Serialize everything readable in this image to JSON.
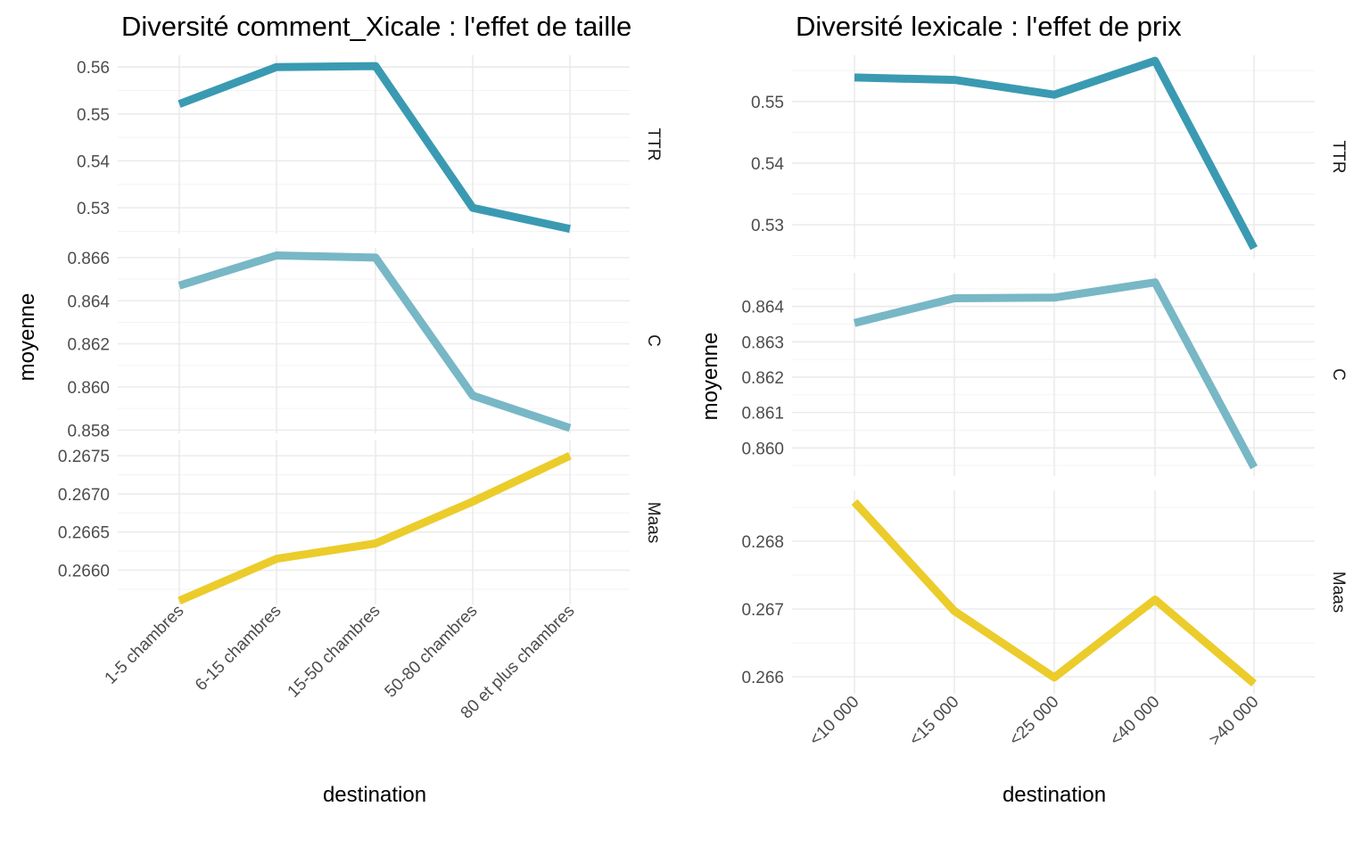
{
  "chart_data": [
    {
      "type": "line",
      "title": "Diversité comment_Xicale : l'effet de taille",
      "xlabel": "destination",
      "ylabel": "moyenne",
      "categories": [
        "1-5 chambres",
        "6-15 chambres",
        "15-50 chambres",
        "50-80 chambres",
        "80 et plus chambres"
      ],
      "grid": true,
      "legend": "none",
      "facets": [
        {
          "label": "TTR",
          "color": "#3A9AB2",
          "ylim": [
            0.5245,
            0.5625
          ],
          "ticks": [
            "0.53",
            "0.54",
            "0.55",
            "0.56"
          ],
          "tick_values": [
            0.53,
            0.54,
            0.55,
            0.56
          ],
          "values": [
            0.5521,
            0.56,
            0.5602,
            0.53,
            0.5255
          ]
        },
        {
          "label": "C",
          "color": "#78B7C5",
          "ylim": [
            0.85785,
            0.86645
          ],
          "ticks": [
            "0.858",
            "0.860",
            "0.862",
            "0.864",
            "0.866"
          ],
          "tick_values": [
            0.858,
            0.86,
            0.862,
            0.864,
            0.866
          ],
          "values": [
            0.8647,
            0.8661,
            0.866,
            0.8596,
            0.8581
          ]
        },
        {
          "label": "Maas",
          "color": "#EBCC2A",
          "ylim": [
            0.26555,
            0.2677
          ],
          "ticks": [
            "0.2660",
            "0.2665",
            "0.2670",
            "0.2675"
          ],
          "tick_values": [
            0.266,
            0.2665,
            0.267,
            0.2675
          ],
          "values": [
            0.2656,
            0.26615,
            0.26635,
            0.2669,
            0.2675
          ]
        }
      ]
    },
    {
      "type": "line",
      "title": "Diversité lexicale : l'effet de prix",
      "xlabel": "destination",
      "ylabel": "moyenne",
      "categories": [
        "<10 000",
        "<15 000",
        "<25 000",
        "<40 000",
        ">40 000"
      ],
      "grid": true,
      "legend": "none",
      "facets": [
        {
          "label": "TTR",
          "color": "#3A9AB2",
          "ylim": [
            0.5245,
            0.5575
          ],
          "ticks": [
            "0.53",
            "0.54",
            "0.55"
          ],
          "tick_values": [
            0.53,
            0.54,
            0.55
          ],
          "values": [
            0.5539,
            0.5535,
            0.5511,
            0.5566,
            0.5262
          ]
        },
        {
          "label": "C",
          "color": "#78B7C5",
          "ylim": [
            0.8592,
            0.86495
          ],
          "ticks": [
            "0.860",
            "0.861",
            "0.862",
            "0.863",
            "0.864"
          ],
          "tick_values": [
            0.86,
            0.861,
            0.862,
            0.863,
            0.864
          ],
          "values": [
            0.86353,
            0.86423,
            0.86425,
            0.86468,
            0.85945
          ]
        },
        {
          "label": "Maas",
          "color": "#EBCC2A",
          "ylim": [
            0.26575,
            0.26875
          ],
          "ticks": [
            "0.266",
            "0.267",
            "0.268"
          ],
          "tick_values": [
            0.266,
            0.267,
            0.268
          ],
          "values": [
            0.26858,
            0.26697,
            0.26599,
            0.26714,
            0.2659
          ]
        }
      ]
    }
  ]
}
